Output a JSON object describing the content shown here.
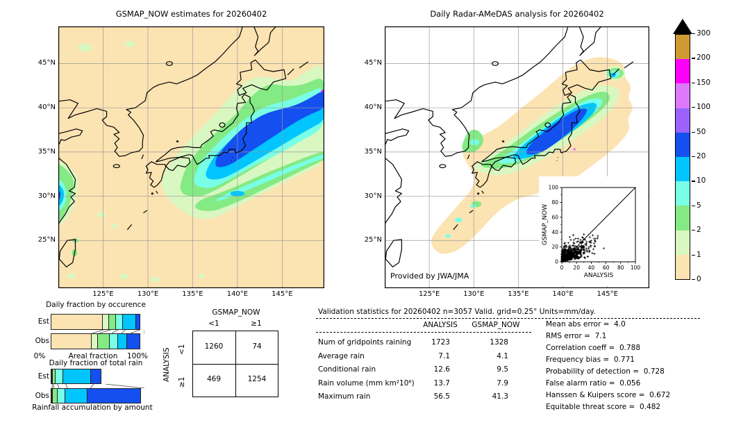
{
  "palette": {
    "units": "mm/day",
    "levels": [
      0,
      1,
      2,
      5,
      10,
      20,
      50,
      100,
      150,
      200,
      300
    ],
    "tick_labels": [
      "0",
      "1",
      "2",
      "5",
      "10",
      "20",
      "50",
      "100",
      "150",
      "200",
      "300"
    ],
    "colors_low_to_high": [
      "#fce3b2",
      "#d9f7c0",
      "#84ea84",
      "#78ffe5",
      "#00c5ff",
      "#1450f0",
      "#9b63fb",
      "#dd7afc",
      "#fb00fb",
      "#d09a32"
    ],
    "overflow_color": "#000000",
    "grid_color": "#9a9a9a"
  },
  "chart_data": [
    {
      "type": "map",
      "title": "GSMAP_NOW estimates for 20260402",
      "y_ticks": [
        "45°N",
        "40°N",
        "35°N",
        "30°N",
        "25°N"
      ],
      "x_ticks": [
        "125°E",
        "130°E",
        "135°E",
        "140°E",
        "145°E"
      ],
      "lat_tick_values": [
        45,
        40,
        35,
        30,
        25
      ],
      "lon_tick_values": [
        125,
        130,
        135,
        140,
        145
      ],
      "extent": {
        "lon": [
          120,
          149.7
        ],
        "lat": [
          19.6,
          49.2
        ]
      },
      "content_note": "filled precipitation contours, SW-NE rain band over Japan with blue core, coastal China rain blob"
    },
    {
      "type": "map",
      "title": "Daily Radar-AMeDAS analysis for 20260402",
      "credit": "Provided by JWA/JMA",
      "y_ticks": [
        "45°N",
        "40°N",
        "35°N",
        "30°N",
        "25°N"
      ],
      "x_ticks": [
        "125°E",
        "130°E",
        "135°E",
        "140°E",
        "145°E"
      ],
      "lat_tick_values": [
        45,
        40,
        35,
        30,
        25
      ],
      "lon_tick_values": [
        125,
        130,
        135,
        140,
        145
      ],
      "extent": {
        "lon": [
          120,
          149.7
        ],
        "lat": [
          19.6,
          49.2
        ]
      },
      "content_note": "radar coverage area in tan around Japan and Ryukyu arc, rain band over Honshu with blue core"
    },
    {
      "type": "scatter",
      "xlabel": "ANALYSIS",
      "ylabel": "GSMAP_NOW",
      "xlim": [
        0,
        100
      ],
      "ylim": [
        0,
        100
      ],
      "x_tick_values": [
        0,
        20,
        40,
        60,
        80,
        100
      ],
      "y_tick_values": [
        0,
        20,
        40,
        60,
        80,
        100
      ],
      "marker": "+",
      "identity_line": true,
      "n_points": 3057,
      "distribution_note": "dense cluster ANALYSIS 0-50, GSMAP_NOW 0-40, mostly below 1:1 line, isolated point near (57,18)"
    },
    {
      "type": "bar",
      "title": "Daily fraction by occurence",
      "rows": [
        "Est",
        "Obs"
      ],
      "xlabel": "Areal fraction",
      "x_min_label": "0%",
      "x_max_label": "100%",
      "bins_mm_per_day": [
        "0-1",
        "1-2",
        "2-5",
        "5-10",
        "10-20",
        "20-50"
      ],
      "series": [
        {
          "name": "Est",
          "fractions": [
            0.56,
            0.075,
            0.08,
            0.08,
            0.155,
            0.05
          ]
        },
        {
          "name": "Obs",
          "fractions": [
            0.44,
            0.075,
            0.135,
            0.1,
            0.1,
            0.15
          ]
        }
      ]
    },
    {
      "type": "bar",
      "title": "Daily fraction of total rain",
      "rows": [
        "Est",
        "Obs"
      ],
      "footer": "Rainfall accumulation by amount",
      "bins_mm_per_day": [
        "0-1",
        "1-2",
        "2-5",
        "5-10",
        "10-20",
        "20-50"
      ],
      "series": [
        {
          "name": "Est",
          "fractions": [
            0.01,
            0.015,
            0.04,
            0.09,
            0.3,
            0.125
          ]
        },
        {
          "name": "Obs",
          "fractions": [
            0.008,
            0.015,
            0.06,
            0.09,
            0.247,
            0.58
          ]
        }
      ]
    },
    {
      "type": "table",
      "col_group_label": "GSMAP_NOW",
      "row_group_label": "ANALYSIS",
      "col_labels": [
        "<1",
        "≥1"
      ],
      "row_labels": [
        "<1",
        "≥1"
      ],
      "values": [
        [
          "1260",
          "74"
        ],
        [
          "469",
          "1254"
        ]
      ]
    },
    {
      "type": "table",
      "title": "Validation statistics for 20260402  n=3057 Valid. grid=0.25° Units=mm/day.",
      "columns": [
        "ANALYSIS",
        "GSMAP_NOW"
      ],
      "rows": [
        {
          "label": "Num of gridpoints raining",
          "analysis": "1723",
          "gsmap_now": "1328"
        },
        {
          "label": "Average rain",
          "analysis": "7.1",
          "gsmap_now": "4.1"
        },
        {
          "label": "Conditional rain",
          "analysis": "12.6",
          "gsmap_now": "9.5"
        },
        {
          "label": "Rain volume (mm km²10⁶)",
          "analysis": "13.7",
          "gsmap_now": "7.9"
        },
        {
          "label": "Maximum rain",
          "analysis": "56.5",
          "gsmap_now": "41.3"
        }
      ]
    },
    {
      "type": "table",
      "rows": [
        {
          "label": "Mean abs error",
          "value": "4.0"
        },
        {
          "label": "RMS error",
          "value": "7.1"
        },
        {
          "label": "Correlation coeff",
          "value": "0.788"
        },
        {
          "label": "Frequency bias",
          "value": "0.771"
        },
        {
          "label": "Probability of detection",
          "value": "0.728"
        },
        {
          "label": "False alarm ratio",
          "value": "0.056"
        },
        {
          "label": "Hanssen & Kuipers score",
          "value": "0.672"
        },
        {
          "label": "Equitable threat score",
          "value": "0.482"
        }
      ]
    }
  ]
}
